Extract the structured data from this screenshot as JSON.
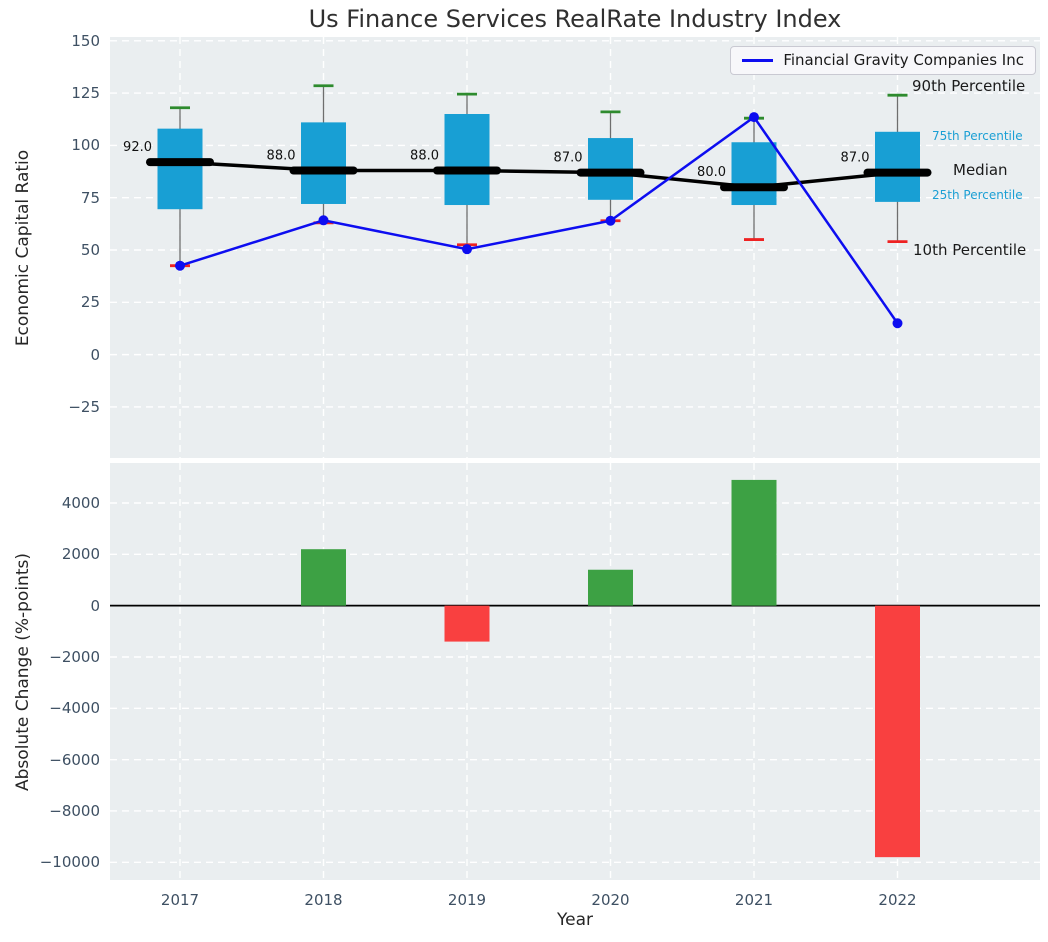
{
  "title": "Us Finance Services RealRate Industry Index",
  "legend": {
    "label": "Financial Gravity Companies Inc"
  },
  "colors": {
    "axes_bg": "#eaeef0",
    "grid": "#ffffff",
    "tick_label": "#3e5063",
    "axis_label": "#262626",
    "title": "#303030",
    "box_fill": "#189fd4",
    "median_line": "#000000",
    "whisker": "#6e6e6e",
    "p90_cap": "#2e8b2e",
    "p10_cap": "#ee2222",
    "company_line": "#0d0df0",
    "bar_positive": "#3da144",
    "bar_negative": "#f94040",
    "zero_line": "#000000",
    "annotation_dark": "#1a1a1a",
    "annotation_cyan": "#1b9fd4"
  },
  "chart_data": [
    {
      "type": "boxplot_line",
      "title": "Us Finance Services RealRate Industry Index",
      "ylabel": "Economic Capital Ratio",
      "categories": [
        2017,
        2018,
        2019,
        2020,
        2021,
        2022
      ],
      "yticks": [
        150,
        125,
        100,
        75,
        50,
        25,
        0,
        -25
      ],
      "ylim": [
        -49.4,
        151.8
      ],
      "grid": "white-dashed",
      "legend_position": "upper right",
      "boxes": [
        {
          "year": 2017,
          "p10": 42.5,
          "q1": 69.5,
          "median": 92.0,
          "q3": 108.0,
          "p90": 118.0
        },
        {
          "year": 2018,
          "p10": 63.0,
          "q1": 72.0,
          "median": 88.0,
          "q3": 111.0,
          "p90": 128.5
        },
        {
          "year": 2019,
          "p10": 52.5,
          "q1": 71.5,
          "median": 88.0,
          "q3": 115.0,
          "p90": 124.5
        },
        {
          "year": 2020,
          "p10": 64.0,
          "q1": 74.0,
          "median": 87.0,
          "q3": 103.5,
          "p90": 116.0
        },
        {
          "year": 2021,
          "p10": 55.0,
          "q1": 71.5,
          "median": 80.0,
          "q3": 101.5,
          "p90": 113.0
        },
        {
          "year": 2022,
          "p10": 54.0,
          "q1": 73.0,
          "median": 87.0,
          "q3": 106.5,
          "p90": 124.0
        }
      ],
      "series": [
        {
          "name": "Financial Gravity Companies Inc",
          "values": [
            42.5,
            64.2,
            50.4,
            64.0,
            113.5,
            15.0
          ]
        }
      ],
      "annotations": [
        {
          "text": "90th Percentile",
          "value": 127.5,
          "size": "large",
          "color": "dark"
        },
        {
          "text": "75th Percentile",
          "value": 104.0,
          "size": "small",
          "color": "cyan"
        },
        {
          "text": "Median",
          "value": 87.5,
          "size": "large",
          "color": "dark"
        },
        {
          "text": "25th Percentile",
          "value": 76.0,
          "size": "small",
          "color": "cyan"
        },
        {
          "text": "10th Percentile",
          "value": 49.5,
          "size": "large",
          "color": "dark"
        }
      ]
    },
    {
      "type": "bar",
      "ylabel": "Absolute Change (%-points)",
      "xlabel": "Year",
      "categories": [
        2017,
        2018,
        2019,
        2020,
        2021,
        2022
      ],
      "values": [
        0,
        2200,
        -1400,
        1400,
        4900,
        -9800
      ],
      "yticks": [
        4000,
        2000,
        0,
        -2000,
        -4000,
        -6000,
        -8000,
        -10000
      ],
      "ylim": [
        -10690,
        5559
      ],
      "grid": "white-dashed"
    }
  ]
}
